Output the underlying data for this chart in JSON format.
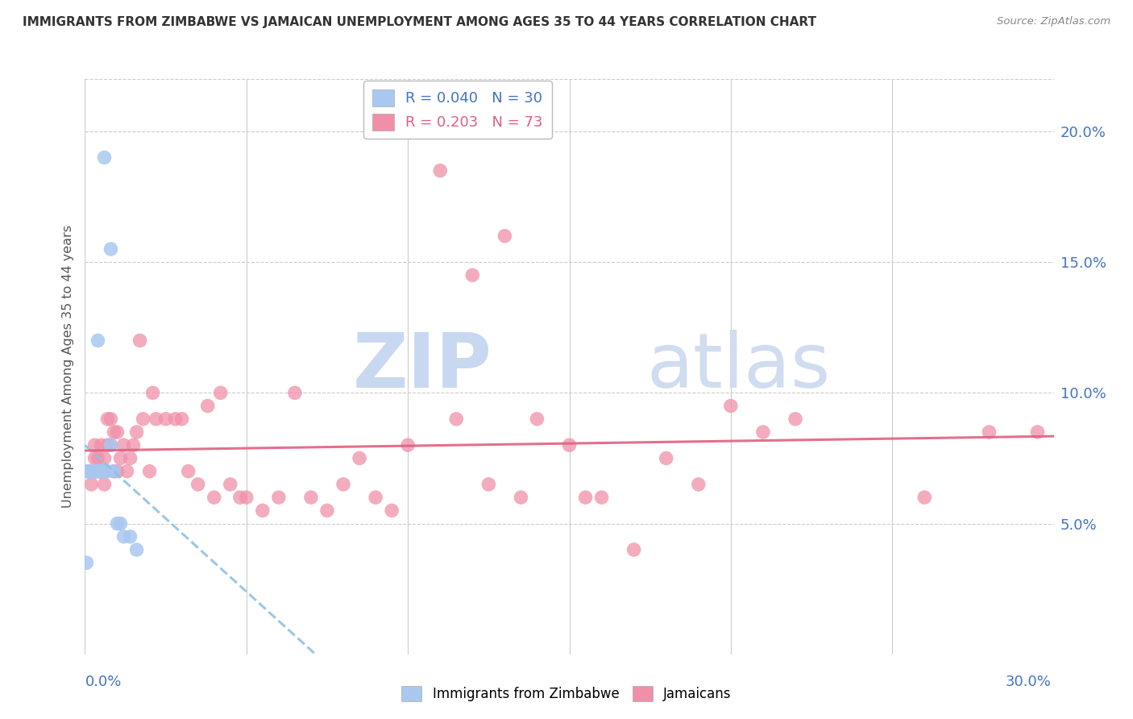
{
  "title": "IMMIGRANTS FROM ZIMBABWE VS JAMAICAN UNEMPLOYMENT AMONG AGES 35 TO 44 YEARS CORRELATION CHART",
  "source": "Source: ZipAtlas.com",
  "ylabel": "Unemployment Among Ages 35 to 44 years",
  "right_yticks": [
    "20.0%",
    "15.0%",
    "10.0%",
    "5.0%"
  ],
  "right_ytick_vals": [
    0.2,
    0.15,
    0.1,
    0.05
  ],
  "legend1_r": "0.040",
  "legend1_n": "30",
  "legend2_r": "0.203",
  "legend2_n": "73",
  "color_blue": "#A8C8F0",
  "color_pink": "#F090A8",
  "color_line_blue": "#90C0E8",
  "color_line_pink": "#E06080",
  "color_axis_labels": "#4472C4",
  "watermark_zip": "ZIP",
  "watermark_atlas": "atlas",
  "watermark_color": "#C8D8F0",
  "blue_scatter_x": [
    0.0005,
    0.001,
    0.001,
    0.0015,
    0.002,
    0.002,
    0.002,
    0.003,
    0.003,
    0.003,
    0.004,
    0.004,
    0.004,
    0.004,
    0.005,
    0.005,
    0.005,
    0.005,
    0.006,
    0.006,
    0.006,
    0.007,
    0.008,
    0.008,
    0.009,
    0.01,
    0.011,
    0.012,
    0.014,
    0.016
  ],
  "blue_scatter_y": [
    0.035,
    0.07,
    0.07,
    0.07,
    0.07,
    0.07,
    0.07,
    0.07,
    0.07,
    0.07,
    0.07,
    0.07,
    0.12,
    0.07,
    0.07,
    0.07,
    0.07,
    0.07,
    0.07,
    0.07,
    0.19,
    0.07,
    0.08,
    0.155,
    0.07,
    0.05,
    0.05,
    0.045,
    0.045,
    0.04
  ],
  "pink_scatter_x": [
    0.001,
    0.001,
    0.002,
    0.002,
    0.003,
    0.003,
    0.003,
    0.004,
    0.004,
    0.005,
    0.005,
    0.005,
    0.006,
    0.006,
    0.007,
    0.007,
    0.008,
    0.008,
    0.009,
    0.009,
    0.01,
    0.01,
    0.011,
    0.012,
    0.013,
    0.014,
    0.015,
    0.016,
    0.017,
    0.018,
    0.02,
    0.021,
    0.022,
    0.025,
    0.028,
    0.03,
    0.032,
    0.035,
    0.038,
    0.04,
    0.042,
    0.045,
    0.048,
    0.05,
    0.055,
    0.06,
    0.065,
    0.07,
    0.075,
    0.08,
    0.085,
    0.09,
    0.095,
    0.1,
    0.11,
    0.115,
    0.12,
    0.125,
    0.13,
    0.135,
    0.14,
    0.15,
    0.155,
    0.16,
    0.17,
    0.18,
    0.19,
    0.2,
    0.21,
    0.22,
    0.26,
    0.28,
    0.295
  ],
  "pink_scatter_y": [
    0.07,
    0.07,
    0.065,
    0.07,
    0.07,
    0.075,
    0.08,
    0.07,
    0.075,
    0.07,
    0.07,
    0.08,
    0.065,
    0.075,
    0.08,
    0.09,
    0.08,
    0.09,
    0.085,
    0.07,
    0.07,
    0.085,
    0.075,
    0.08,
    0.07,
    0.075,
    0.08,
    0.085,
    0.12,
    0.09,
    0.07,
    0.1,
    0.09,
    0.09,
    0.09,
    0.09,
    0.07,
    0.065,
    0.095,
    0.06,
    0.1,
    0.065,
    0.06,
    0.06,
    0.055,
    0.06,
    0.1,
    0.06,
    0.055,
    0.065,
    0.075,
    0.06,
    0.055,
    0.08,
    0.185,
    0.09,
    0.145,
    0.065,
    0.16,
    0.06,
    0.09,
    0.08,
    0.06,
    0.06,
    0.04,
    0.075,
    0.065,
    0.095,
    0.085,
    0.09,
    0.06,
    0.085,
    0.085
  ],
  "xlim": [
    0.0,
    0.3
  ],
  "ylim": [
    0.0,
    0.22
  ],
  "xtick_positions": [
    0.0,
    0.05,
    0.1,
    0.15,
    0.2,
    0.25,
    0.3
  ]
}
